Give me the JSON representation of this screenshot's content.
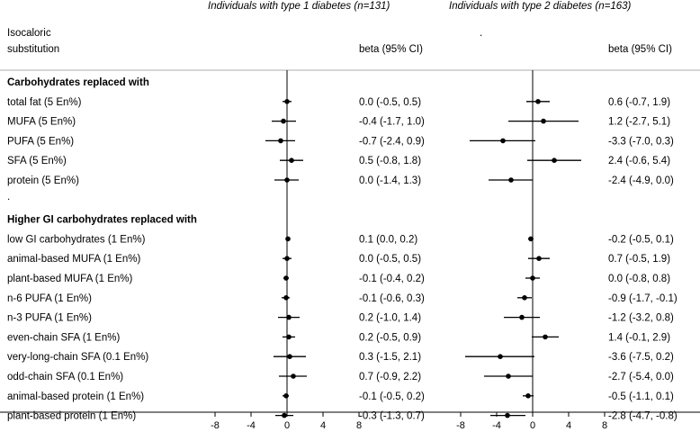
{
  "chart_data": {
    "type": "forest",
    "header": {
      "left_title": "Isocaloric",
      "left_title2": "substitution",
      "panel1_title": "Individuals with type 1 diabetes (n=131)",
      "panel2_title": "Individuals with type 2 diabetes (n=163)",
      "col_label": "beta (95% CI)",
      "mark2": "."
    },
    "xlim": [
      -10,
      10
    ],
    "xticks": [
      -8,
      -4,
      0,
      4,
      8
    ],
    "rows": [
      {
        "kind": "header",
        "label": "Carbohydrates replaced with"
      },
      {
        "kind": "data",
        "label": "total fat (5 En%)",
        "t1": {
          "est": 0.0,
          "lo": -0.5,
          "hi": 0.5,
          "text": "0.0 (-0.5, 0.5)"
        },
        "t2": {
          "est": 0.6,
          "lo": -0.7,
          "hi": 1.9,
          "text": "0.6 (-0.7, 1.9)"
        }
      },
      {
        "kind": "data",
        "label": "MUFA (5 En%)",
        "t1": {
          "est": -0.4,
          "lo": -1.7,
          "hi": 1.0,
          "text": "-0.4 (-1.7, 1.0)"
        },
        "t2": {
          "est": 1.2,
          "lo": -2.7,
          "hi": 5.1,
          "text": "1.2 (-2.7, 5.1)"
        }
      },
      {
        "kind": "data",
        "label": "PUFA (5 En%)",
        "t1": {
          "est": -0.7,
          "lo": -2.4,
          "hi": 0.9,
          "text": "-0.7 (-2.4, 0.9)"
        },
        "t2": {
          "est": -3.3,
          "lo": -7.0,
          "hi": 0.3,
          "text": "-3.3 (-7.0, 0.3)"
        }
      },
      {
        "kind": "data",
        "label": "SFA (5 En%)",
        "t1": {
          "est": 0.5,
          "lo": -0.8,
          "hi": 1.8,
          "text": "0.5 (-0.8, 1.8)"
        },
        "t2": {
          "est": 2.4,
          "lo": -0.6,
          "hi": 5.4,
          "text": "2.4 (-0.6, 5.4)"
        }
      },
      {
        "kind": "data",
        "label": "protein (5 En%)",
        "t1": {
          "est": 0.0,
          "lo": -1.4,
          "hi": 1.3,
          "text": "0.0 (-1.4, 1.3)"
        },
        "t2": {
          "est": -2.4,
          "lo": -4.9,
          "hi": 0.0,
          "text": "-2.4 (-4.9, 0.0)"
        }
      },
      {
        "kind": "spacer",
        "label": "."
      },
      {
        "kind": "header",
        "label": "Higher GI carbohydrates replaced with"
      },
      {
        "kind": "data",
        "label": "low GI carbohydrates (1 En%)",
        "t1": {
          "est": 0.1,
          "lo": 0.0,
          "hi": 0.2,
          "text": "0.1 (0.0, 0.2)"
        },
        "t2": {
          "est": -0.2,
          "lo": -0.5,
          "hi": 0.1,
          "text": "-0.2 (-0.5, 0.1)"
        }
      },
      {
        "kind": "data",
        "label": "animal-based MUFA (1 En%)",
        "t1": {
          "est": 0.0,
          "lo": -0.5,
          "hi": 0.5,
          "text": "0.0 (-0.5, 0.5)"
        },
        "t2": {
          "est": 0.7,
          "lo": -0.5,
          "hi": 1.9,
          "text": "0.7 (-0.5, 1.9)"
        }
      },
      {
        "kind": "data",
        "label": "plant-based MUFA (1 En%)",
        "t1": {
          "est": -0.1,
          "lo": -0.4,
          "hi": 0.2,
          "text": "-0.1 (-0.4, 0.2)"
        },
        "t2": {
          "est": 0.0,
          "lo": -0.8,
          "hi": 0.8,
          "text": "0.0 (-0.8, 0.8)"
        }
      },
      {
        "kind": "data",
        "label": "n-6 PUFA (1 En%)",
        "t1": {
          "est": -0.1,
          "lo": -0.6,
          "hi": 0.3,
          "text": "-0.1 (-0.6, 0.3)"
        },
        "t2": {
          "est": -0.9,
          "lo": -1.7,
          "hi": -0.1,
          "text": "-0.9 (-1.7, -0.1)"
        }
      },
      {
        "kind": "data",
        "label": "n-3 PUFA (1 En%)",
        "t1": {
          "est": 0.2,
          "lo": -1.0,
          "hi": 1.4,
          "text": "0.2 (-1.0, 1.4)"
        },
        "t2": {
          "est": -1.2,
          "lo": -3.2,
          "hi": 0.8,
          "text": "-1.2 (-3.2, 0.8)"
        }
      },
      {
        "kind": "data",
        "label": "even-chain SFA (1 En%)",
        "t1": {
          "est": 0.2,
          "lo": -0.5,
          "hi": 0.9,
          "text": "0.2 (-0.5, 0.9)"
        },
        "t2": {
          "est": 1.4,
          "lo": -0.1,
          "hi": 2.9,
          "text": "1.4 (-0.1, 2.9)"
        }
      },
      {
        "kind": "data",
        "label": "very-long-chain SFA (0.1 En%)",
        "t1": {
          "est": 0.3,
          "lo": -1.5,
          "hi": 2.1,
          "text": "0.3 (-1.5, 2.1)"
        },
        "t2": {
          "est": -3.6,
          "lo": -7.5,
          "hi": 0.2,
          "text": "-3.6 (-7.5, 0.2)"
        }
      },
      {
        "kind": "data",
        "label": "odd-chain SFA (0.1 En%)",
        "t1": {
          "est": 0.7,
          "lo": -0.9,
          "hi": 2.2,
          "text": "0.7 (-0.9, 2.2)"
        },
        "t2": {
          "est": -2.7,
          "lo": -5.4,
          "hi": 0.0,
          "text": "-2.7 (-5.4, 0.0)"
        }
      },
      {
        "kind": "data",
        "label": "animal-based protein (1 En%)",
        "t1": {
          "est": -0.1,
          "lo": -0.5,
          "hi": 0.2,
          "text": "-0.1 (-0.5, 0.2)"
        },
        "t2": {
          "est": -0.5,
          "lo": -1.1,
          "hi": 0.1,
          "text": "-0.5 (-1.1, 0.1)"
        }
      },
      {
        "kind": "data",
        "label": "plant-based protein (1 En%)",
        "t1": {
          "est": -0.3,
          "lo": -1.3,
          "hi": 0.7,
          "text": "-0.3 (-1.3, 0.7)"
        },
        "t2": {
          "est": -2.8,
          "lo": -4.7,
          "hi": -0.8,
          "text": "-2.8 (-4.7, -0.8)"
        }
      },
      {
        "kind": "spacer",
        "label": "."
      }
    ]
  }
}
